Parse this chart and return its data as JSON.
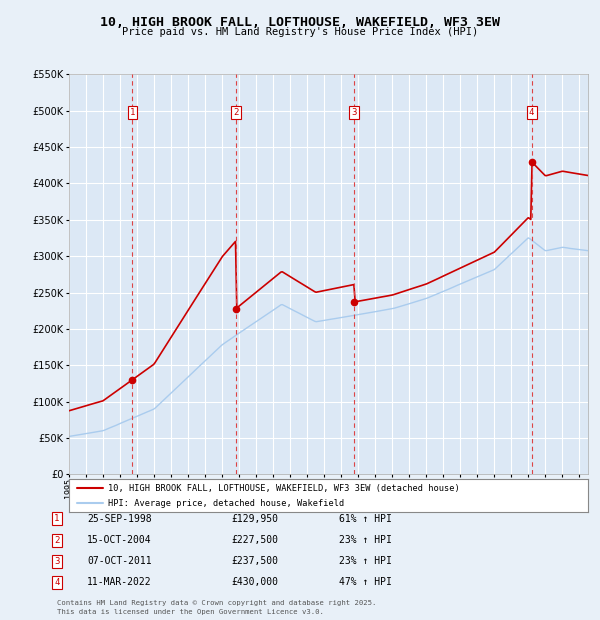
{
  "title": "10, HIGH BROOK FALL, LOFTHOUSE, WAKEFIELD, WF3 3EW",
  "subtitle": "Price paid vs. HM Land Registry's House Price Index (HPI)",
  "legend_line1": "10, HIGH BROOK FALL, LOFTHOUSE, WAKEFIELD, WF3 3EW (detached house)",
  "legend_line2": "HPI: Average price, detached house, Wakefield",
  "footnote1": "Contains HM Land Registry data © Crown copyright and database right 2025.",
  "footnote2": "This data is licensed under the Open Government Licence v3.0.",
  "transactions": [
    {
      "num": 1,
      "date": "25-SEP-1998",
      "price": "£129,950",
      "hpi": "61% ↑ HPI",
      "year": 1998.73
    },
    {
      "num": 2,
      "date": "15-OCT-2004",
      "price": "£227,500",
      "hpi": "23% ↑ HPI",
      "year": 2004.79
    },
    {
      "num": 3,
      "date": "07-OCT-2011",
      "price": "£237,500",
      "hpi": "23% ↑ HPI",
      "year": 2011.77
    },
    {
      "num": 4,
      "date": "11-MAR-2022",
      "price": "£430,000",
      "hpi": "47% ↑ HPI",
      "year": 2022.19
    }
  ],
  "transaction_values": [
    129950,
    227500,
    237500,
    430000
  ],
  "ylim": [
    0,
    550000
  ],
  "yticks": [
    0,
    50000,
    100000,
    150000,
    200000,
    250000,
    300000,
    350000,
    400000,
    450000,
    500000,
    550000
  ],
  "xlim": [
    1995,
    2025.5
  ],
  "bg_color": "#e8f0f8",
  "plot_bg_color": "#dce8f5",
  "red_line_color": "#cc0000",
  "blue_line_color": "#aaccee",
  "vline_color": "#dd4444",
  "grid_color": "#ffffff",
  "box_color": "#cc0000"
}
